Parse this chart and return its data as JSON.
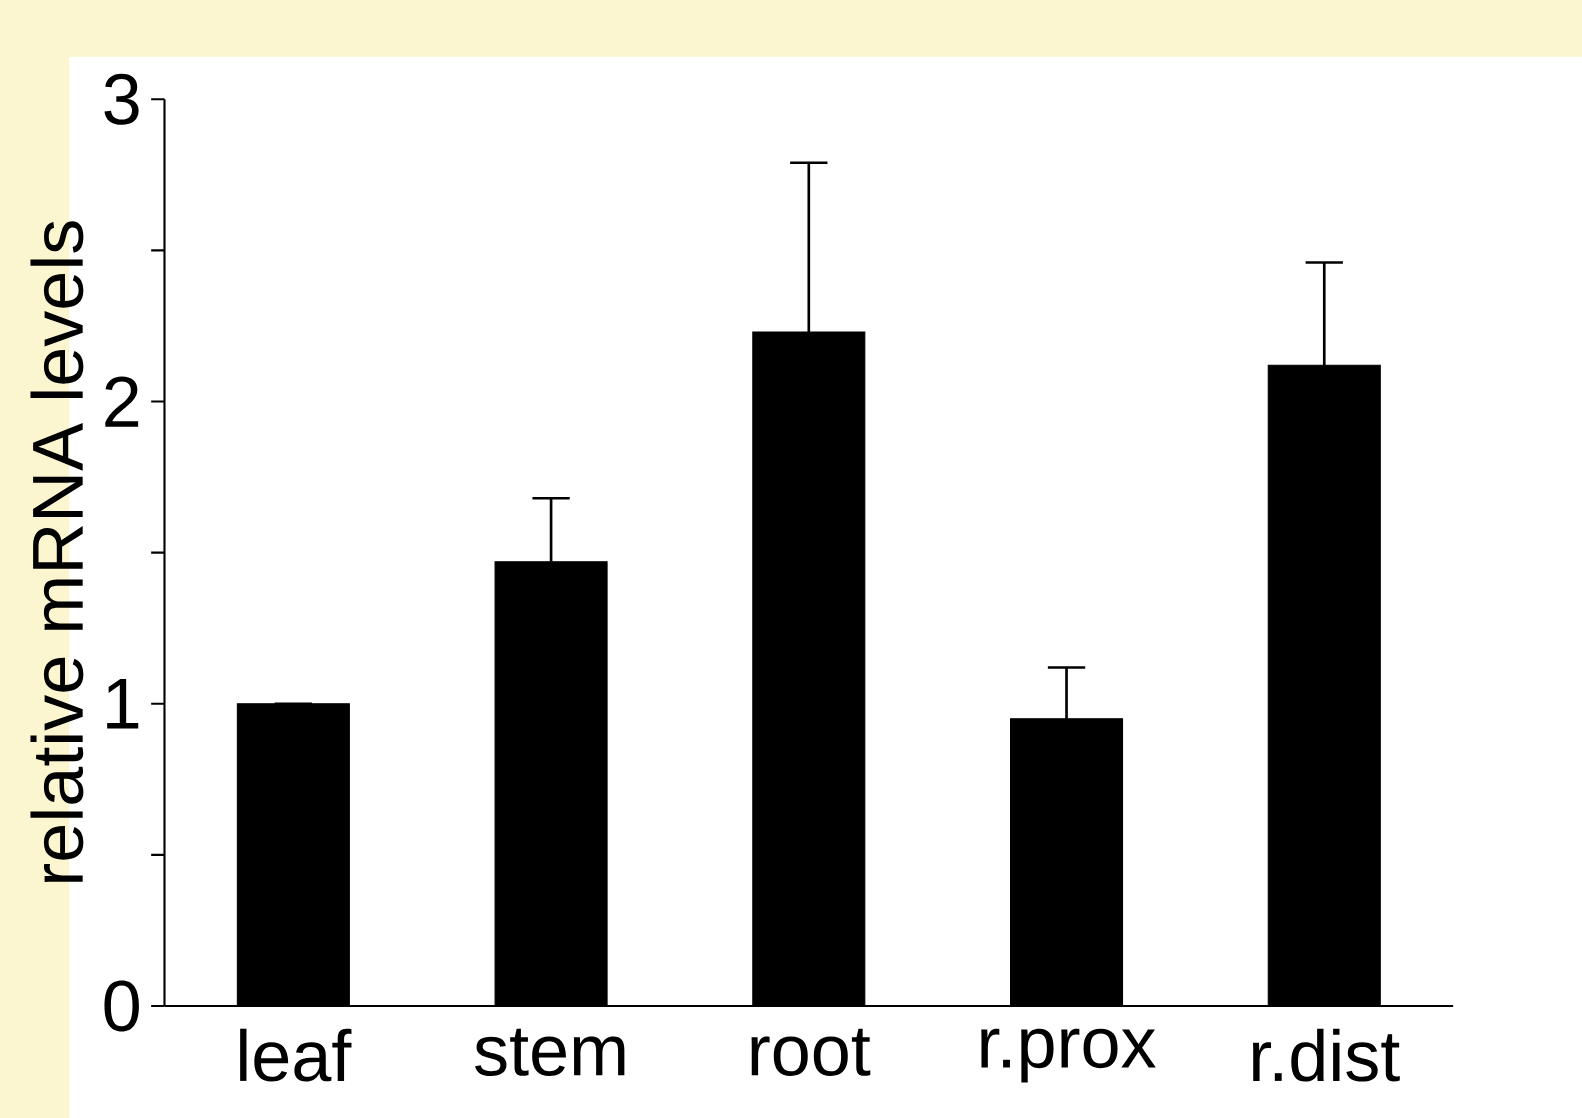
{
  "chart_data": {
    "type": "bar",
    "ylabel": "relative mRNA levels",
    "categories": [
      "leaf",
      "stem",
      "root",
      "r.prox",
      "r.dist"
    ],
    "values": [
      1.0,
      1.47,
      2.23,
      0.95,
      2.12
    ],
    "errors": [
      null,
      0.21,
      0.56,
      0.17,
      0.34
    ],
    "color": "#000000",
    "ylim": [
      0,
      3
    ],
    "yticks": [
      0,
      {
        "value": 0.5,
        "label": null
      },
      1,
      {
        "value": 1.5,
        "label": null
      },
      2,
      {
        "value": 2.5,
        "label": null
      },
      3
    ],
    "grid": false
  }
}
